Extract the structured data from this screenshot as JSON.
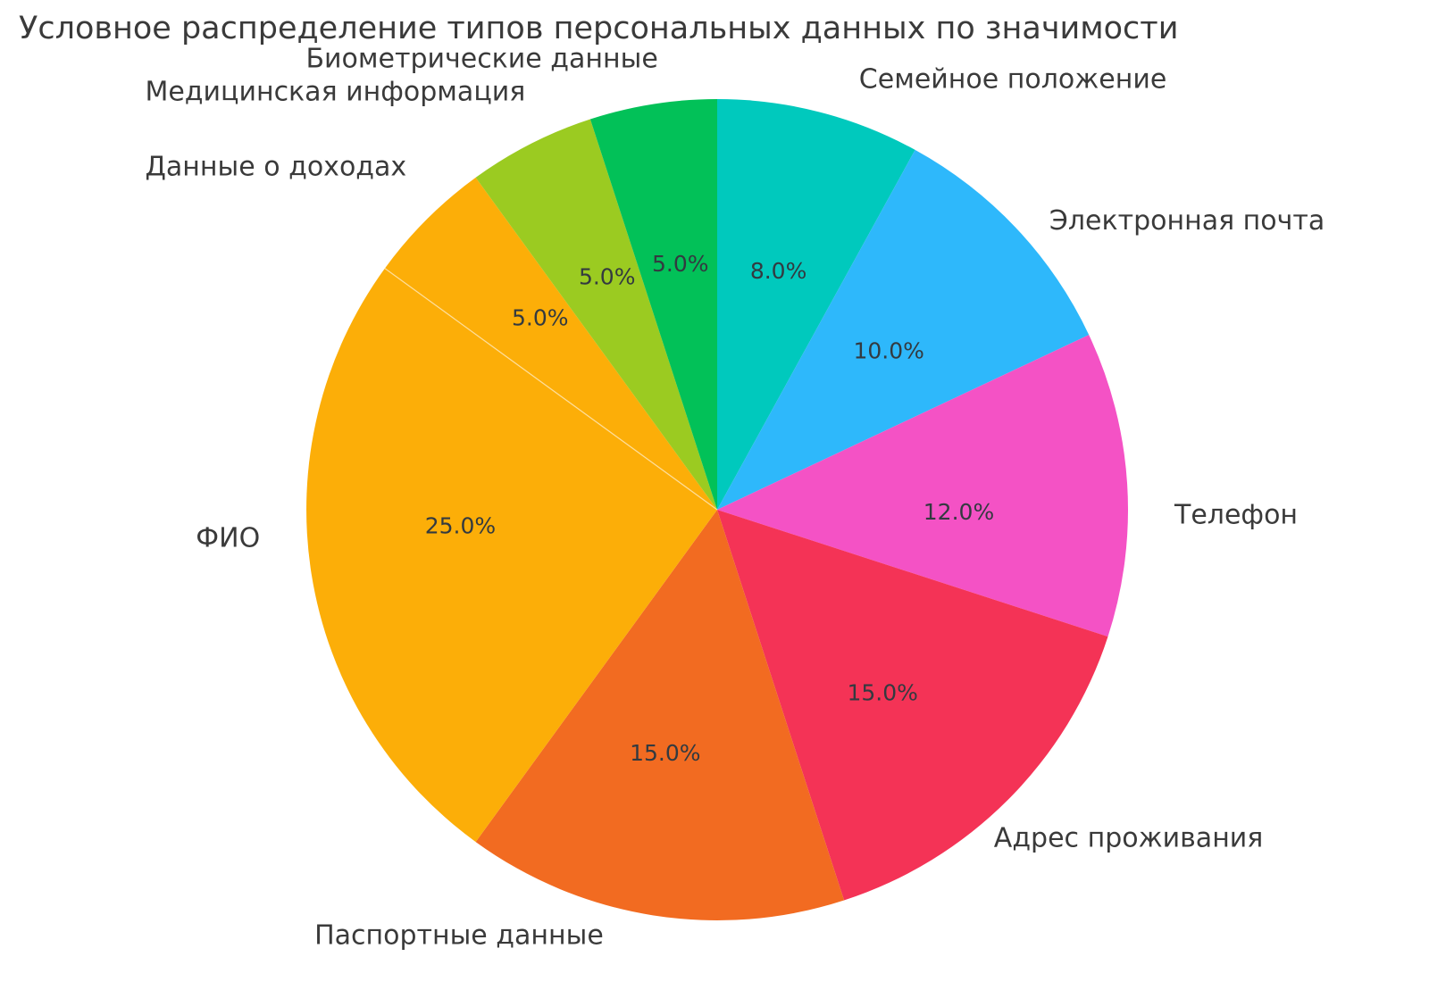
{
  "chart_data": {
    "type": "pie",
    "title": "Условное распределение типов персональных данных по значимости",
    "slices": [
      {
        "label": "Семейное положение",
        "value": 8,
        "pct_label": "8.0%",
        "color": "#00C9BD"
      },
      {
        "label": "Электронная почта",
        "value": 10,
        "pct_label": "10.0%",
        "color": "#2EB8FB"
      },
      {
        "label": "Телефон",
        "value": 12,
        "pct_label": "12.0%",
        "color": "#F452C5"
      },
      {
        "label": "Адрес проживания",
        "value": 15,
        "pct_label": "15.0%",
        "color": "#F43356"
      },
      {
        "label": "Паспортные данные",
        "value": 15,
        "pct_label": "15.0%",
        "color": "#F26B21"
      },
      {
        "label": "ФИО",
        "value": 25,
        "pct_label": "25.0%",
        "color": "#FCAE08"
      },
      {
        "label": "Данные о доходах",
        "value": 5,
        "pct_label": "5.0%",
        "color": "#FCAE08"
      },
      {
        "label": "Медицинская информация",
        "value": 5,
        "pct_label": "5.0%",
        "color": "#9BCB21"
      },
      {
        "label": "Биометрические данные",
        "value": 5,
        "pct_label": "5.0%",
        "color": "#02C158"
      }
    ],
    "start_angle_deg": 90,
    "counterclockwise": false,
    "pct_distance": 0.6,
    "label_distance": 1.1,
    "legend": false,
    "title_color": "#3a3a3a",
    "label_color": "#3a3a3a",
    "pct_color": "#333a40"
  }
}
